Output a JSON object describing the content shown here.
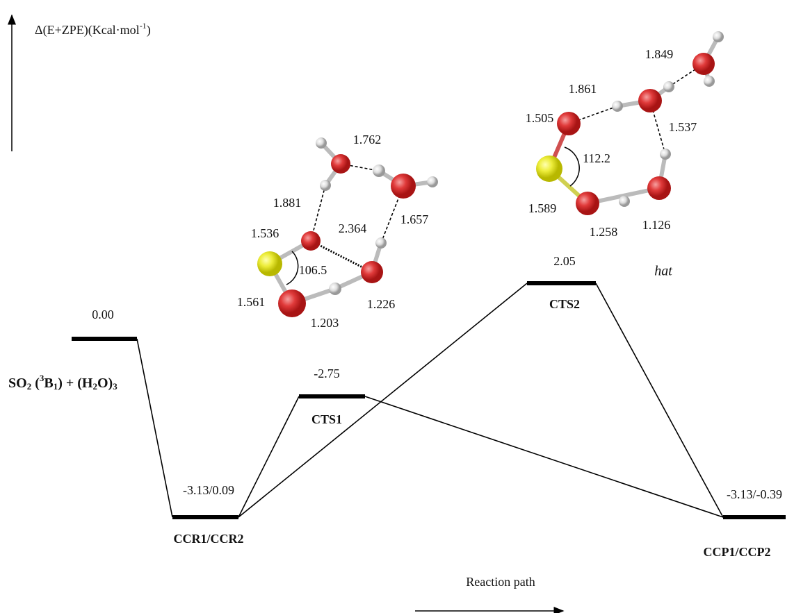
{
  "axis_label": [
    "Δ(E+ZPE)(Kcal·mol",
    "-1",
    ")"
  ],
  "reactant_label": [
    "SO",
    "2",
    " (",
    "3",
    "B",
    "1",
    ") + (H",
    "2",
    "O)",
    "3"
  ],
  "x_label": "Reaction path",
  "levels": [
    {
      "name": "CCR1/CCR2",
      "energy": "-3.13/0.09"
    },
    {
      "name": "CTS1",
      "energy": "-2.75"
    },
    {
      "name": "CTS2",
      "energy": "2.05"
    },
    {
      "name": "CCP1/CCP2",
      "energy": "-3.13/-0.39"
    }
  ],
  "reactant_energy": "0.00",
  "structure_1": [
    "1.762",
    "1.881",
    "1.536",
    "2.364",
    "1.657",
    "106.5",
    "1.561",
    "1.226",
    "1.203"
  ],
  "structure_2": [
    "1.849",
    "1.861",
    "1.505",
    "1.537",
    "112.2",
    "1.589",
    "1.258",
    "1.126"
  ],
  "structure_2_tag": "hat"
}
